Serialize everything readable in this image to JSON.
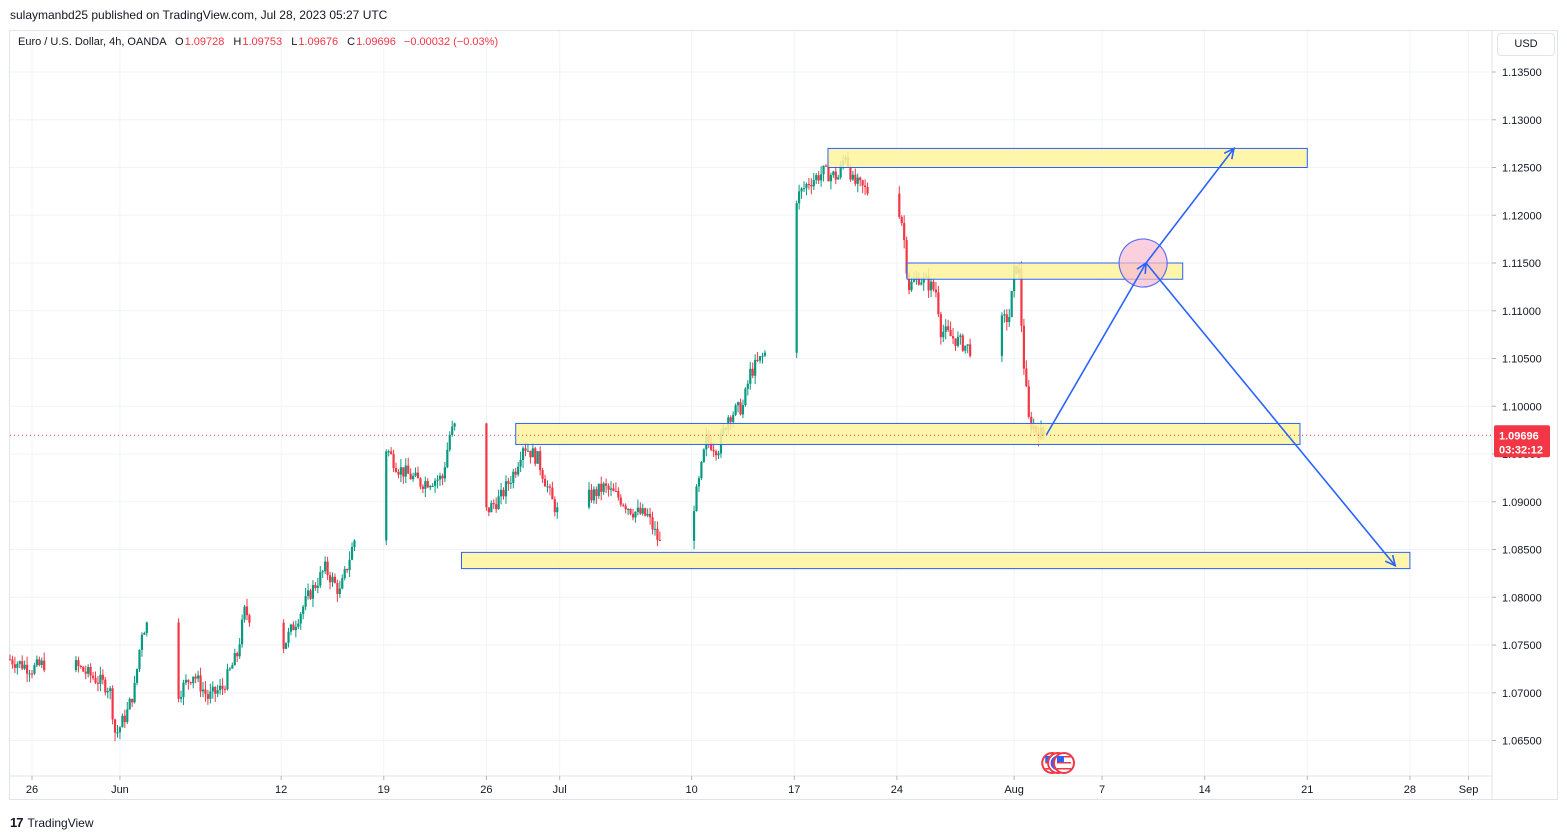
{
  "header": {
    "publisher": "sulaymanbd25 published on TradingView.com, Jul 28, 2023 05:27 UTC"
  },
  "legend": {
    "symbol": "Euro / U.S. Dollar, 4h, OANDA",
    "open_label": "O",
    "open": "1.09728",
    "high_label": "H",
    "high": "1.09753",
    "low_label": "L",
    "low": "1.09676",
    "close_label": "C",
    "close": "1.09696",
    "change": "−0.00032 (−0.03%)"
  },
  "currency_button": "USD",
  "last_price": {
    "price": "1.09696",
    "countdown": "03:32:12"
  },
  "footer": {
    "brand": "TradingView",
    "brand_icon": "tradingview-logo-icon"
  },
  "colors": {
    "up": "#089981",
    "down": "#f23645",
    "zone_fill": "#fff59d",
    "zone_border": "#2962ff",
    "arrow": "#2962ff",
    "ellipse_fill": "#f8bbd0",
    "ellipse_border": "#5b6ef5",
    "grid": "#f0f3fa"
  },
  "chart_data": {
    "type": "candlestick",
    "symbol": "EURUSD",
    "timeframe": "4h",
    "ylim": [
      1.062,
      1.137
    ],
    "y_ticks": [
      "1.13500",
      "1.13000",
      "1.12500",
      "1.12000",
      "1.11500",
      "1.11000",
      "1.10500",
      "1.10000",
      "1.09500",
      "1.09000",
      "1.08500",
      "1.08000",
      "1.07500",
      "1.07000",
      "1.06500"
    ],
    "x_ticks": [
      {
        "label": "26",
        "day": -6
      },
      {
        "label": "Jun",
        "day": 0
      },
      {
        "label": "12",
        "day": 11
      },
      {
        "label": "19",
        "day": 18
      },
      {
        "label": "26",
        "day": 25
      },
      {
        "label": "Jul",
        "day": 30
      },
      {
        "label": "10",
        "day": 39
      },
      {
        "label": "17",
        "day": 46
      },
      {
        "label": "24",
        "day": 53
      },
      {
        "label": "Aug",
        "day": 61
      },
      {
        "label": "7",
        "day": 67
      },
      {
        "label": "14",
        "day": 74
      },
      {
        "label": "21",
        "day": 81
      },
      {
        "label": "28",
        "day": 88
      },
      {
        "label": "Sep",
        "day": 92
      }
    ],
    "price_path": [
      {
        "day": -7.5,
        "price": 1.0735
      },
      {
        "day": -6,
        "price": 1.0725
      },
      {
        "day": -4,
        "price": 1.0738
      },
      {
        "day": -2,
        "price": 1.0718
      },
      {
        "day": -0.7,
        "price": 1.0705
      },
      {
        "day": -0.3,
        "price": 1.0655
      },
      {
        "day": 0.5,
        "price": 1.068
      },
      {
        "day": 1,
        "price": 1.0705
      },
      {
        "day": 1.5,
        "price": 1.0765
      },
      {
        "day": 2,
        "price": 1.0775
      },
      {
        "day": 3,
        "price": 1.072
      },
      {
        "day": 4,
        "price": 1.07
      },
      {
        "day": 5,
        "price": 1.072
      },
      {
        "day": 6,
        "price": 1.0695
      },
      {
        "day": 7,
        "price": 1.0705
      },
      {
        "day": 8,
        "price": 1.074
      },
      {
        "day": 8.5,
        "price": 1.0785
      },
      {
        "day": 9.5,
        "price": 1.077
      },
      {
        "day": 10.5,
        "price": 1.0755
      },
      {
        "day": 11,
        "price": 1.0745
      },
      {
        "day": 12,
        "price": 1.0775
      },
      {
        "day": 13,
        "price": 1.0805
      },
      {
        "day": 14,
        "price": 1.083
      },
      {
        "day": 15,
        "price": 1.0805
      },
      {
        "day": 16,
        "price": 1.086
      },
      {
        "day": 17,
        "price": 1.087
      },
      {
        "day": 17.5,
        "price": 1.0955
      },
      {
        "day": 18,
        "price": 1.096
      },
      {
        "day": 19,
        "price": 1.0935
      },
      {
        "day": 20.5,
        "price": 1.092
      },
      {
        "day": 22,
        "price": 1.0925
      },
      {
        "day": 22.5,
        "price": 1.097
      },
      {
        "day": 23.3,
        "price": 1.099
      },
      {
        "day": 23.8,
        "price": 1.096
      },
      {
        "day": 24.3,
        "price": 1.0855
      },
      {
        "day": 25,
        "price": 1.089
      },
      {
        "day": 26,
        "price": 1.0905
      },
      {
        "day": 27,
        "price": 1.0935
      },
      {
        "day": 27.5,
        "price": 1.096
      },
      {
        "day": 28.5,
        "price": 1.0945
      },
      {
        "day": 29.5,
        "price": 1.09
      },
      {
        "day": 30.5,
        "price": 1.087
      },
      {
        "day": 31.3,
        "price": 1.0845
      },
      {
        "day": 32,
        "price": 1.0905
      },
      {
        "day": 33,
        "price": 1.0915
      },
      {
        "day": 34,
        "price": 1.0905
      },
      {
        "day": 35,
        "price": 1.089
      },
      {
        "day": 36,
        "price": 1.0885
      },
      {
        "day": 37,
        "price": 1.085
      },
      {
        "day": 37.5,
        "price": 1.0845
      },
      {
        "day": 38,
        "price": 1.088
      },
      {
        "day": 39,
        "price": 1.0885
      },
      {
        "day": 39.5,
        "price": 1.092
      },
      {
        "day": 40,
        "price": 1.0965
      },
      {
        "day": 40.8,
        "price": 1.0955
      },
      {
        "day": 41.5,
        "price": 1.099
      },
      {
        "day": 42.5,
        "price": 1.1
      },
      {
        "day": 43,
        "price": 1.1035
      },
      {
        "day": 44,
        "price": 1.1055
      },
      {
        "day": 44.5,
        "price": 1.114
      },
      {
        "day": 45.5,
        "price": 1.116
      },
      {
        "day": 46,
        "price": 1.1215
      },
      {
        "day": 47,
        "price": 1.1235
      },
      {
        "day": 48,
        "price": 1.1245
      },
      {
        "day": 49,
        "price": 1.124
      },
      {
        "day": 49.5,
        "price": 1.1265
      },
      {
        "day": 50,
        "price": 1.1235
      },
      {
        "day": 51,
        "price": 1.1225
      },
      {
        "day": 52,
        "price": 1.123
      },
      {
        "day": 52.5,
        "price": 1.12
      },
      {
        "day": 53,
        "price": 1.1215
      },
      {
        "day": 53.4,
        "price": 1.119
      },
      {
        "day": 53.8,
        "price": 1.1125
      },
      {
        "day": 54.5,
        "price": 1.1135
      },
      {
        "day": 55,
        "price": 1.113
      },
      {
        "day": 55.7,
        "price": 1.112
      },
      {
        "day": 56,
        "price": 1.108
      },
      {
        "day": 57,
        "price": 1.107
      },
      {
        "day": 58,
        "price": 1.106
      },
      {
        "day": 58.5,
        "price": 1.1045
      },
      {
        "day": 59,
        "price": 1.1055
      },
      {
        "day": 60,
        "price": 1.1085
      },
      {
        "day": 60.7,
        "price": 1.1095
      },
      {
        "day": 61,
        "price": 1.114
      },
      {
        "day": 61.3,
        "price": 1.115
      },
      {
        "day": 61.6,
        "price": 1.1055
      },
      {
        "day": 62,
        "price": 1.0985
      },
      {
        "day": 62.5,
        "price": 1.0975
      },
      {
        "day": 63,
        "price": 1.09696
      }
    ],
    "zones": [
      {
        "day_start": 48.3,
        "day_end": 81.0,
        "price_top": 1.127,
        "price_bottom": 1.125
      },
      {
        "day_start": 53.7,
        "day_end": 72.5,
        "price_top": 1.115,
        "price_bottom": 1.1133
      },
      {
        "day_start": 27.0,
        "day_end": 80.5,
        "price_top": 1.0982,
        "price_bottom": 1.096
      },
      {
        "day_start": 23.3,
        "day_end": 88.0,
        "price_top": 1.0847,
        "price_bottom": 1.083
      }
    ],
    "projection_arrows": [
      {
        "from": {
          "day": 63.2,
          "price": 1.097
        },
        "to": {
          "day": 70,
          "price": 1.115
        }
      },
      {
        "from": {
          "day": 70,
          "price": 1.115
        },
        "to": {
          "day": 76,
          "price": 1.127
        }
      },
      {
        "from": {
          "day": 70,
          "price": 1.115
        },
        "to": {
          "day": 87,
          "price": 1.0833
        }
      }
    ],
    "highlight_ellipse": {
      "day": 69.8,
      "price": 1.115
    },
    "event_flags": [
      {
        "day": 63.6,
        "icon": "us-flag-icon"
      },
      {
        "day": 64.0,
        "icon": "eu-flag-icon"
      },
      {
        "day": 64.4,
        "icon": "us-flag-icon"
      }
    ]
  }
}
